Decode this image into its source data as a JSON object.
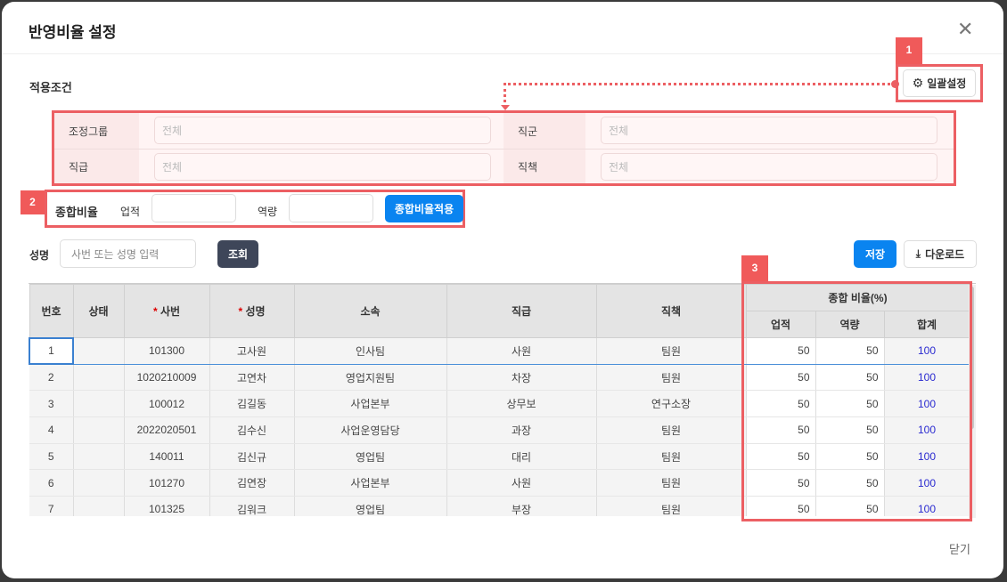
{
  "dialog": {
    "title": "반영비율 설정",
    "close_label": "닫기"
  },
  "conditions": {
    "section_label": "적용조건",
    "bulk_button": "일괄설정",
    "fields": [
      {
        "label": "조정그룹",
        "placeholder": "전체"
      },
      {
        "label": "직군",
        "placeholder": "전체"
      },
      {
        "label": "직급",
        "placeholder": "전체"
      },
      {
        "label": "직책",
        "placeholder": "전체"
      }
    ]
  },
  "ratio": {
    "label": "종합비율",
    "performance_label": "업적",
    "performance_value": "",
    "competency_label": "역량",
    "competency_value": "",
    "apply_button": "종합비율적용"
  },
  "search": {
    "label": "성명",
    "placeholder": "사번 또는 성명 입력",
    "search_button": "조회",
    "save_button": "저장",
    "download_button": "다운로드"
  },
  "annotations": [
    "1",
    "2",
    "3"
  ],
  "colors": {
    "accent": "#0a84f0",
    "annotation": "#ec5f63",
    "sum_text": "#2a2ad0"
  },
  "table": {
    "headers": {
      "no": "번호",
      "status": "상태",
      "emp_no": "사번",
      "name": "성명",
      "dept": "소속",
      "grade": "직급",
      "position": "직책",
      "ratio_group": "종합 비율(%)",
      "performance": "업적",
      "competency": "역량",
      "total": "합계",
      "required_mark": "*"
    },
    "rows": [
      {
        "no": "1",
        "status": "",
        "emp_no": "101300",
        "name": "고사원",
        "dept": "인사팀",
        "grade": "사원",
        "position": "팀원",
        "performance": "50",
        "competency": "50",
        "total": "100"
      },
      {
        "no": "2",
        "status": "",
        "emp_no": "1020210009",
        "name": "고연차",
        "dept": "영업지원팀",
        "grade": "차장",
        "position": "팀원",
        "performance": "50",
        "competency": "50",
        "total": "100"
      },
      {
        "no": "3",
        "status": "",
        "emp_no": "100012",
        "name": "김길동",
        "dept": "사업본부",
        "grade": "상무보",
        "position": "연구소장",
        "performance": "50",
        "competency": "50",
        "total": "100"
      },
      {
        "no": "4",
        "status": "",
        "emp_no": "2022020501",
        "name": "김수신",
        "dept": "사업운영담당",
        "grade": "과장",
        "position": "팀원",
        "performance": "50",
        "competency": "50",
        "total": "100"
      },
      {
        "no": "5",
        "status": "",
        "emp_no": "140011",
        "name": "김신규",
        "dept": "영업팀",
        "grade": "대리",
        "position": "팀원",
        "performance": "50",
        "competency": "50",
        "total": "100"
      },
      {
        "no": "6",
        "status": "",
        "emp_no": "101270",
        "name": "김연장",
        "dept": "사업본부",
        "grade": "사원",
        "position": "팀원",
        "performance": "50",
        "competency": "50",
        "total": "100"
      },
      {
        "no": "7",
        "status": "",
        "emp_no": "101325",
        "name": "김워크",
        "dept": "영업팀",
        "grade": "부장",
        "position": "팀원",
        "performance": "50",
        "competency": "50",
        "total": "100"
      }
    ]
  }
}
